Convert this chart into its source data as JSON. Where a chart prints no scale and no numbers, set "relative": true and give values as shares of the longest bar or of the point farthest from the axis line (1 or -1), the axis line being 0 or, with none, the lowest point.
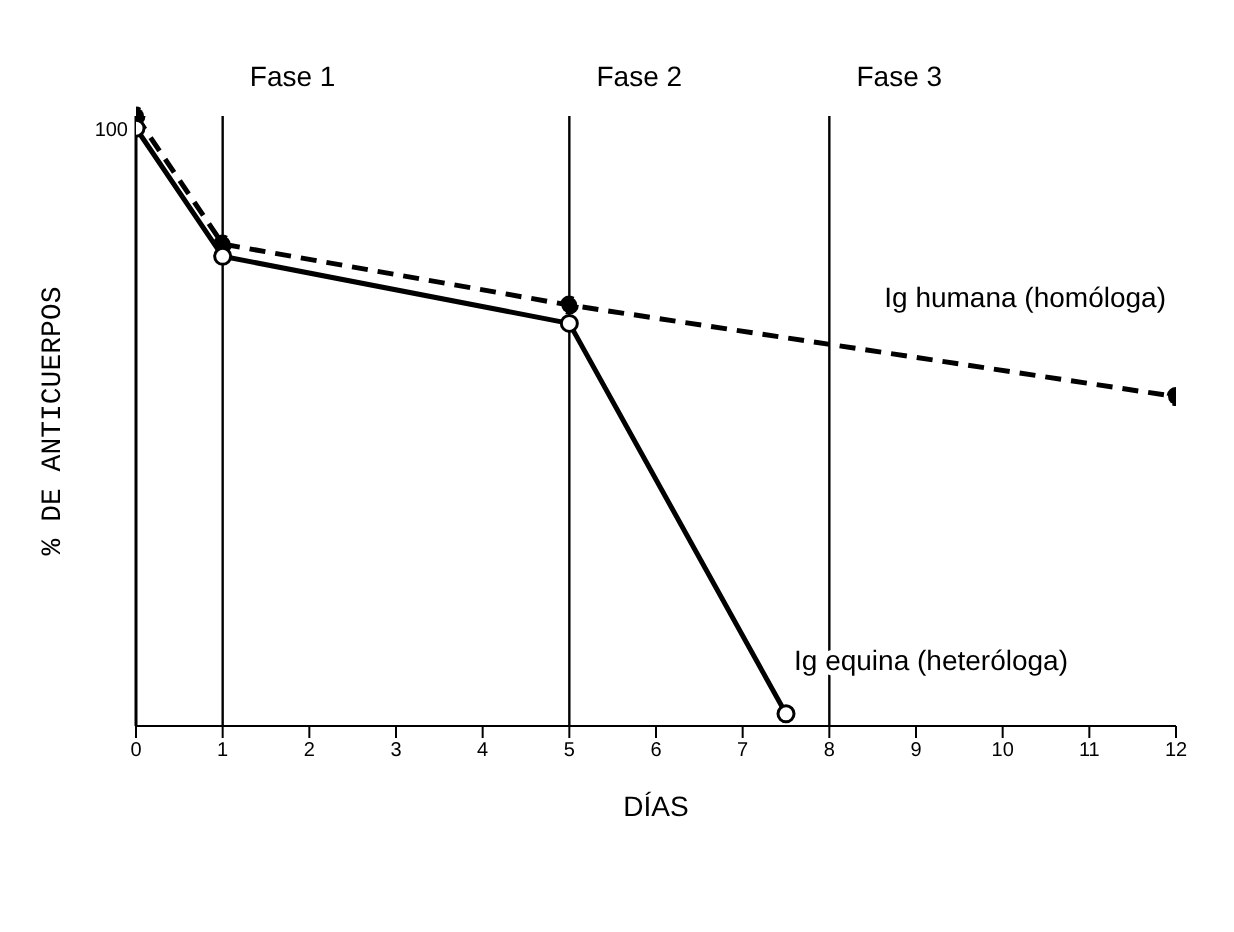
{
  "chart_data": {
    "type": "line",
    "relative": true,
    "xlabel": "DÍAS",
    "ylabel": "% DE ANTICUERPOS",
    "xlim": [
      0,
      12
    ],
    "xticks": [
      0,
      1,
      2,
      3,
      4,
      5,
      6,
      7,
      8,
      9,
      10,
      11,
      12
    ],
    "marker": "circle",
    "annotations": [
      "100"
    ],
    "ref_lines": [
      {
        "axis": "x",
        "value": 1,
        "label": "Fase 1",
        "color": "#000000"
      },
      {
        "axis": "x",
        "value": 5,
        "label": "Fase 2",
        "color": "#000000"
      },
      {
        "axis": "x",
        "value": 8,
        "label": "Fase 3",
        "color": "#000000"
      }
    ],
    "series": [
      {
        "name": "Ig humana (homóloga)",
        "color": "#000000",
        "line_style": "dashed",
        "x": [
          0,
          1,
          5,
          12
        ],
        "values": [
          1,
          0.79,
          0.69,
          0.54
        ]
      },
      {
        "name": "Ig equina (heteróloga)",
        "color": "#000000",
        "line_style": "solid",
        "x": [
          0,
          1,
          5,
          7.5
        ],
        "values": [
          0.98,
          0.77,
          0.66,
          0.02
        ]
      }
    ]
  }
}
